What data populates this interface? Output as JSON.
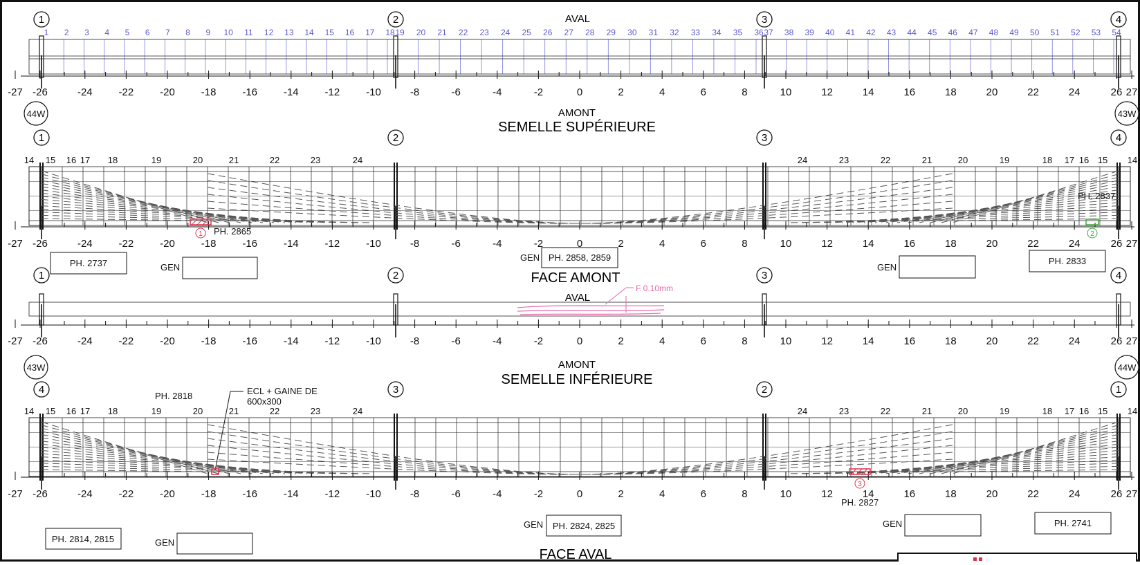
{
  "title_top": "AVAL",
  "sections": {
    "sup": {
      "label_top": "AMONT",
      "title": "SEMELLE SUPÉRIEURE"
    },
    "face_amont": {
      "title": "FACE AMONT",
      "label_top": "AVAL"
    },
    "inf": {
      "label_top": "AMONT",
      "title": "SEMELLE INFÉRIEURE"
    },
    "face_aval": {
      "title": "FACE AVAL"
    }
  },
  "axis_ticks": [
    "-27",
    "-26",
    "-24",
    "-22",
    "-20",
    "-18",
    "-16",
    "-14",
    "-12",
    "-10",
    "-8",
    "-6",
    "-4",
    "-2",
    "0",
    "2",
    "4",
    "6",
    "8",
    "10",
    "12",
    "14",
    "16",
    "18",
    "20",
    "22",
    "24",
    "26",
    "27"
  ],
  "bay_numbers": [
    "1",
    "2",
    "3",
    "4",
    "5",
    "6",
    "7",
    "8",
    "9",
    "10",
    "11",
    "12",
    "13",
    "14",
    "15",
    "16",
    "17",
    "18",
    "19",
    "20",
    "21",
    "22",
    "23",
    "24",
    "25",
    "26",
    "27",
    "28",
    "29",
    "30",
    "31",
    "32",
    "33",
    "34",
    "35",
    "36",
    "37",
    "38",
    "39",
    "40",
    "41",
    "42",
    "43",
    "44",
    "45",
    "46",
    "47",
    "48",
    "49",
    "50",
    "51",
    "52",
    "53",
    "54"
  ],
  "pier_labels": [
    "1",
    "2",
    "3",
    "4"
  ],
  "pier_labels_rev": [
    "4",
    "3",
    "2",
    "1"
  ],
  "end_labels": {
    "sup_left": "44W",
    "sup_right": "43W",
    "inf_left": "43W",
    "inf_right": "44W"
  },
  "rib_labels_left": [
    "14",
    "15",
    "16",
    "17",
    "18",
    "19",
    "20",
    "21",
    "22",
    "23",
    "24"
  ],
  "rib_labels_right": [
    "24",
    "23",
    "22",
    "21",
    "20",
    "19",
    "18",
    "17",
    "16",
    "15",
    "14"
  ],
  "photos": {
    "ph2865": "PH. 2865",
    "ph2837": "PH. 2837",
    "ph2737": "PH. 2737",
    "ph2858": "PH. 2858, 2859",
    "ph2833": "PH. 2833",
    "ph2818": "PH. 2818",
    "ph2814": "PH. 2814, 2815",
    "ph2824": "PH. 2824, 2825",
    "ph2741": "PH. 2741",
    "ph2827": "PH. 2827"
  },
  "gen": "GEN",
  "crack": "F 0.10mm",
  "note_ecl": [
    "ECL + GAINE DE",
    "600x300"
  ],
  "markers": [
    "1",
    "2",
    "3"
  ],
  "colors": {
    "defect_red": "#e0304a",
    "defect_green": "#3daa3d",
    "crack_pink": "#e66aa8",
    "bay_blue": "#5b5bd6"
  }
}
